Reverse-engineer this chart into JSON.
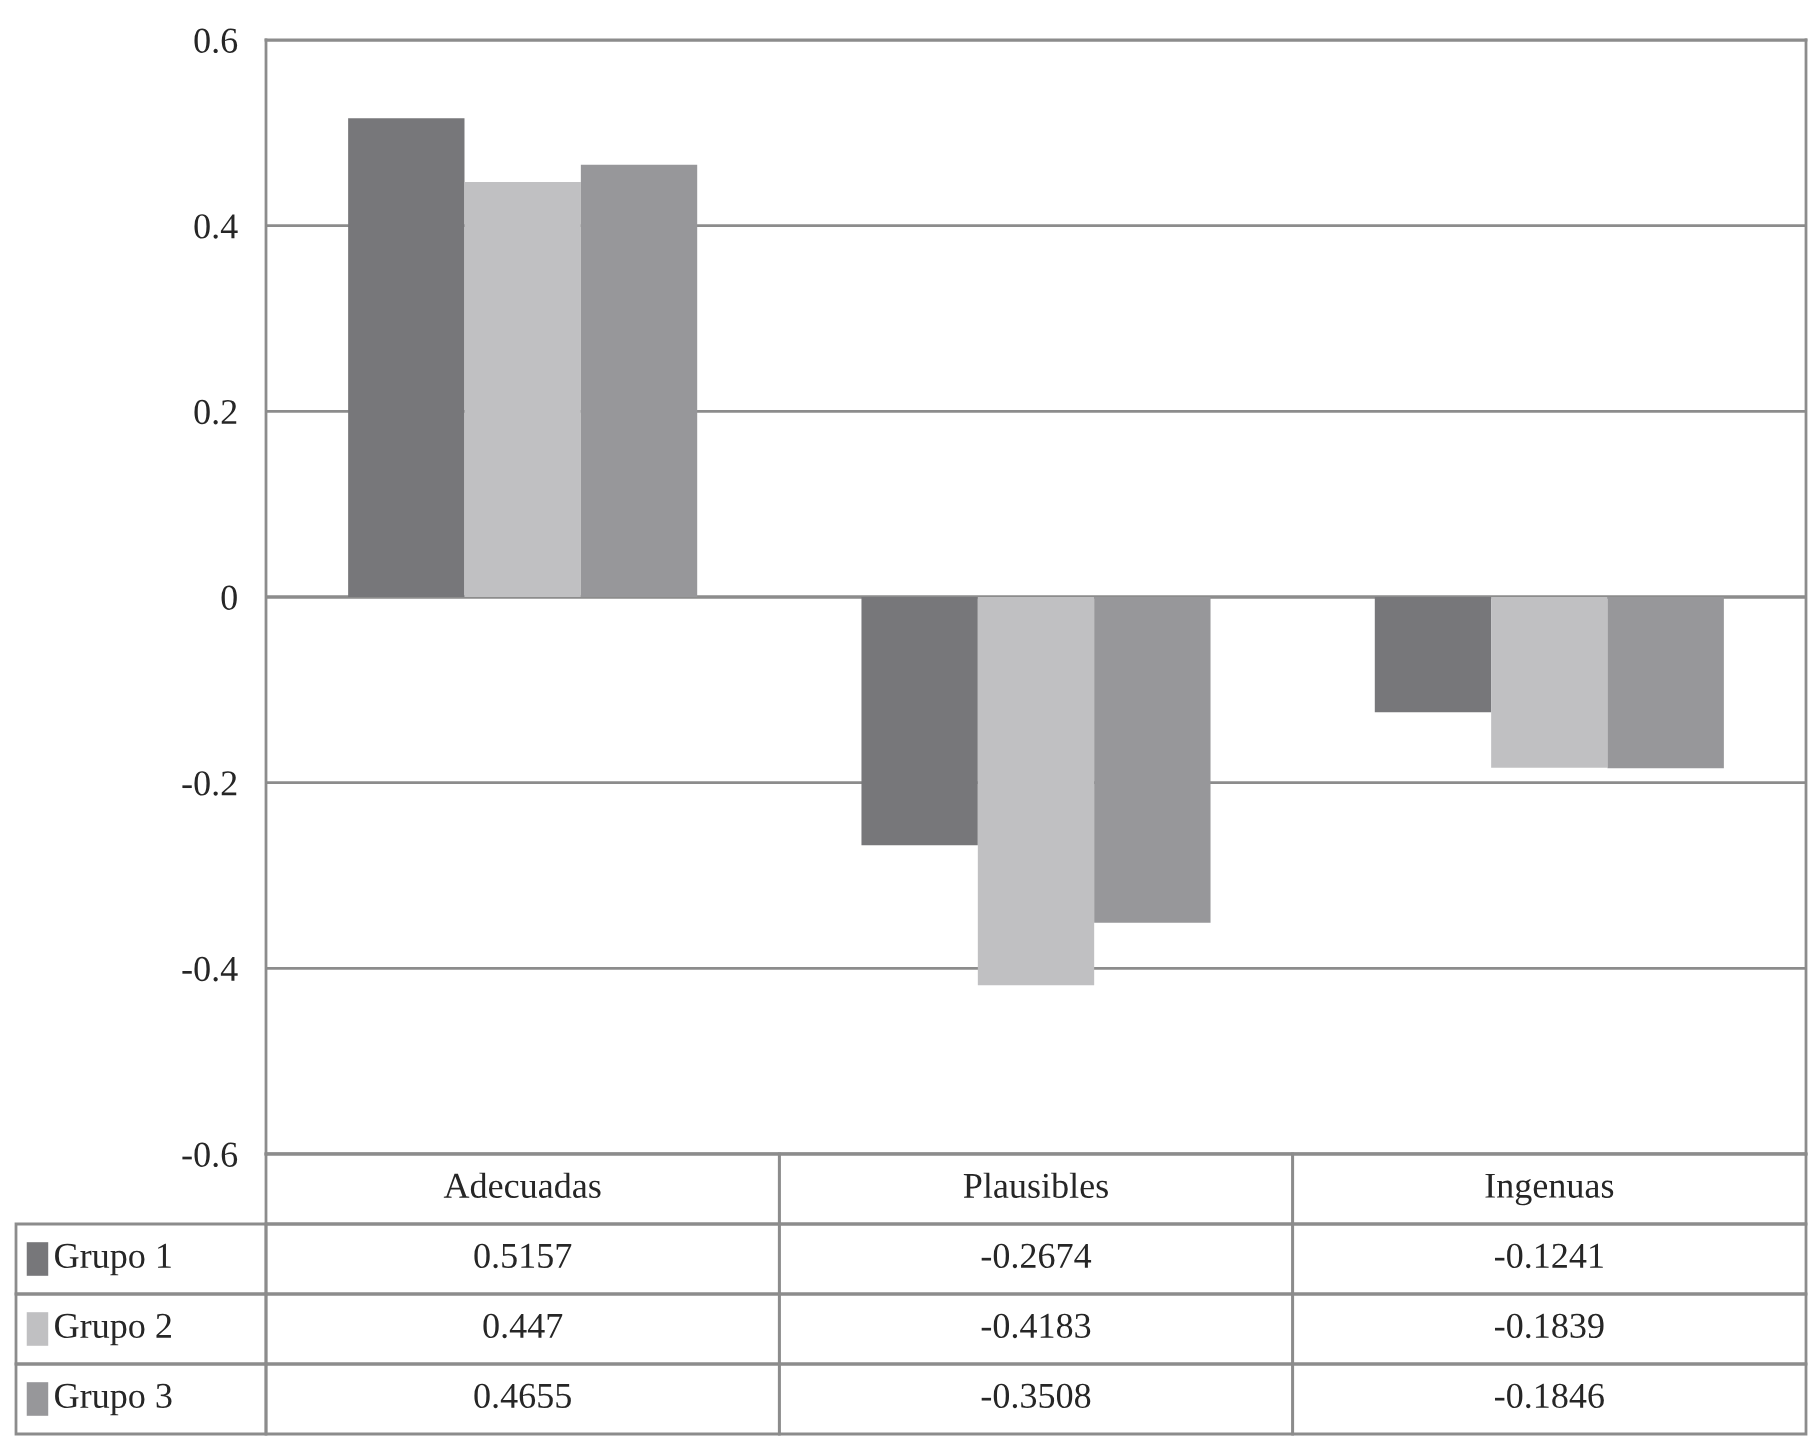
{
  "chart_data": {
    "type": "bar",
    "categories": [
      "Adecuadas",
      "Plausibles",
      "Ingenuas"
    ],
    "series": [
      {
        "name": "Grupo 1",
        "color": "#77777a",
        "values": [
          0.5157,
          -0.2674,
          -0.1241
        ]
      },
      {
        "name": "Grupo 2",
        "color": "#c0c0c2",
        "values": [
          0.447,
          -0.4183,
          -0.1839
        ]
      },
      {
        "name": "Grupo 3",
        "color": "#97979a",
        "values": [
          0.4655,
          -0.3508,
          -0.1846
        ]
      }
    ],
    "ylim": [
      -0.6,
      0.6
    ],
    "yticks": [
      -0.6,
      -0.4,
      -0.2,
      0,
      0.2,
      0.4,
      0.6
    ],
    "grid": "y",
    "legend": "bottom",
    "data_labels": true
  }
}
